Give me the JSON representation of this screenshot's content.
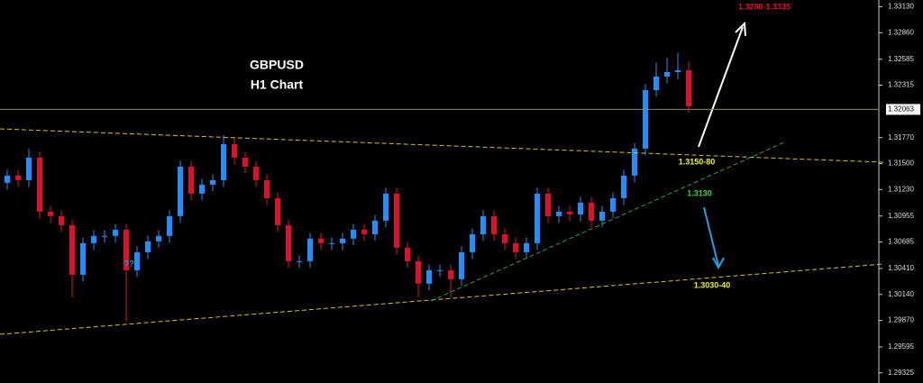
{
  "chart_data": {
    "type": "candlestick",
    "title": "GBPUSD",
    "subtitle": "H1 Chart",
    "annotations": [
      "1.3280-1.3335",
      "1.3150-80",
      "1.3130",
      "1.3030-40",
      "???"
    ],
    "up_color": "#1e90ff",
    "down_color": "#e0102a",
    "ylim": [
      1.2922,
      1.332
    ],
    "yticks": [
      {
        "value": 1.3313,
        "label": "1.33130"
      },
      {
        "value": 1.3286,
        "label": "1.32860"
      },
      {
        "value": 1.32585,
        "label": "1.32585"
      },
      {
        "value": 1.32315,
        "label": "1.32315"
      },
      {
        "value": 1.3177,
        "label": "1.31770"
      },
      {
        "value": 1.315,
        "label": "1.31500"
      },
      {
        "value": 1.3123,
        "label": "1.31230"
      },
      {
        "value": 1.30955,
        "label": "1.30955"
      },
      {
        "value": 1.30685,
        "label": "1.30685"
      },
      {
        "value": 1.3041,
        "label": "1.30410"
      },
      {
        "value": 1.3014,
        "label": "1.30140"
      },
      {
        "value": 1.2987,
        "label": "1.29870"
      },
      {
        "value": 1.29595,
        "label": "1.29595"
      },
      {
        "value": 1.29325,
        "label": "1.29325"
      }
    ],
    "current_price": 1.32063,
    "current_price_label": "1.32063",
    "open": [
      1.313,
      1.31375,
      1.31328,
      1.31562,
      1.31,
      1.30954,
      1.3086,
      1.30345,
      1.30673,
      1.30748,
      1.30748,
      1.30813,
      1.30392,
      1.30579,
      1.30692,
      1.30748,
      1.30954,
      1.31468,
      1.31188,
      1.31281,
      1.31328,
      1.31702,
      1.31562,
      1.31468,
      1.31328,
      1.31141,
      1.3086,
      1.30486,
      1.30486,
      1.3072,
      1.30673,
      1.30673,
      1.3072,
      1.30813,
      1.30766,
      1.30907,
      1.31188,
      1.30626,
      1.30486,
      1.30252,
      1.30392,
      1.30392,
      1.30298,
      1.30579,
      1.30766,
      1.30954,
      1.30766,
      1.30673,
      1.30579,
      1.30673,
      1.31188,
      1.30954,
      1.31,
      1.30972,
      1.31094,
      1.30907,
      1.31,
      1.31141,
      1.31375,
      1.31656,
      1.32264,
      1.32404,
      1.32451,
      1.3247
    ],
    "high": [
      1.31435,
      1.31435,
      1.31656,
      1.31622,
      1.3106,
      1.31014,
      1.3092,
      1.30733,
      1.30808,
      1.30808,
      1.30873,
      1.30873,
      1.30639,
      1.30752,
      1.30808,
      1.31014,
      1.31528,
      1.31528,
      1.31341,
      1.31388,
      1.31796,
      1.31762,
      1.31622,
      1.31528,
      1.31388,
      1.31201,
      1.3092,
      1.30546,
      1.3078,
      1.3078,
      1.30733,
      1.3078,
      1.30873,
      1.30873,
      1.30967,
      1.31248,
      1.31248,
      1.30686,
      1.30546,
      1.30452,
      1.30452,
      1.30452,
      1.30639,
      1.30826,
      1.31014,
      1.31014,
      1.30826,
      1.30733,
      1.30733,
      1.31248,
      1.31248,
      1.3106,
      1.3106,
      1.31154,
      1.31154,
      1.3106,
      1.31201,
      1.31435,
      1.31716,
      1.32324,
      1.3255,
      1.326,
      1.3265,
      1.3256
    ],
    "low": [
      1.3123,
      1.31258,
      1.31258,
      1.3093,
      1.30884,
      1.3079,
      1.30111,
      1.30275,
      1.30603,
      1.30678,
      1.30678,
      1.29858,
      1.30322,
      1.30509,
      1.30622,
      1.30678,
      1.30884,
      1.31118,
      1.31118,
      1.31211,
      1.31258,
      1.31492,
      1.31398,
      1.31258,
      1.31071,
      1.3079,
      1.30416,
      1.30416,
      1.30416,
      1.30603,
      1.30603,
      1.30603,
      1.3065,
      1.30696,
      1.30696,
      1.30837,
      1.30556,
      1.30416,
      1.30111,
      1.30182,
      1.30322,
      1.30111,
      1.30228,
      1.30509,
      1.30696,
      1.30696,
      1.30603,
      1.30509,
      1.30509,
      1.30603,
      1.30884,
      1.30884,
      1.30902,
      1.30902,
      1.30837,
      1.30837,
      1.3093,
      1.31071,
      1.31305,
      1.31586,
      1.32194,
      1.32334,
      1.3238,
      1.32026
    ],
    "close": [
      1.31375,
      1.31328,
      1.31562,
      1.31,
      1.30954,
      1.3086,
      1.30345,
      1.30673,
      1.30748,
      1.30748,
      1.30813,
      1.30392,
      1.30579,
      1.30692,
      1.30748,
      1.30954,
      1.31468,
      1.31188,
      1.31281,
      1.31328,
      1.31702,
      1.31562,
      1.31468,
      1.31328,
      1.31141,
      1.3086,
      1.30486,
      1.30486,
      1.3072,
      1.30673,
      1.30673,
      1.3072,
      1.30813,
      1.30766,
      1.30907,
      1.31188,
      1.30626,
      1.30486,
      1.30252,
      1.30392,
      1.30392,
      1.30298,
      1.30579,
      1.30766,
      1.30954,
      1.30766,
      1.30673,
      1.30579,
      1.30673,
      1.31188,
      1.30954,
      1.31,
      1.30972,
      1.31094,
      1.30907,
      1.31,
      1.31141,
      1.31375,
      1.31656,
      1.32264,
      1.32404,
      1.32451,
      1.3247,
      1.32096
    ]
  }
}
